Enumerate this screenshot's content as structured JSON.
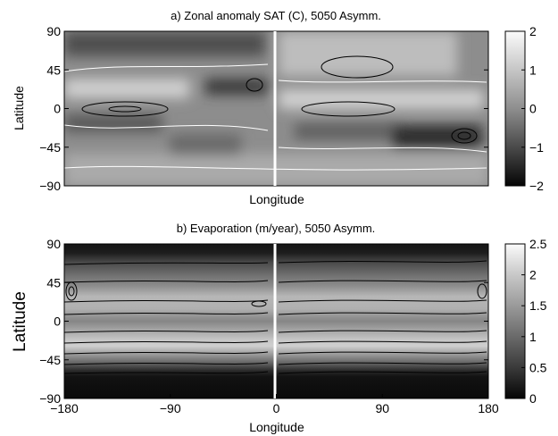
{
  "chart_data": [
    {
      "type": "heatmap",
      "title": "a) Zonal anomaly SAT (C), 5050 Asymm.",
      "xlabel": "Longitude",
      "ylabel": "Latitude",
      "xlim": [
        -180,
        180
      ],
      "ylim": [
        -90,
        90
      ],
      "x_ticks": [],
      "y_ticks": [
        -90,
        -45,
        0,
        45,
        90
      ],
      "colorbar": {
        "range": [
          -2,
          2
        ],
        "ticks": [
          -2,
          -1,
          0,
          1,
          2
        ]
      },
      "contour_colors": [
        "#000000",
        "#ffffff"
      ],
      "features": [
        {
          "lon": -150,
          "lat": 0,
          "value": 0.8
        },
        {
          "lon": 95,
          "lat": 0,
          "value": 0.8
        },
        {
          "lon": 95,
          "lat": 60,
          "value": 1.3
        },
        {
          "lon": -90,
          "lat": 72,
          "value": -0.9
        },
        {
          "lon": -20,
          "lat": 40,
          "value": -1.5
        },
        {
          "lon": 160,
          "lat": -35,
          "value": -1.8
        },
        {
          "lon": 130,
          "lat": -25,
          "value": -1.2
        }
      ]
    },
    {
      "type": "heatmap",
      "title": "b) Evaporation (m/year), 5050 Asymm.",
      "xlabel": "Longitude",
      "ylabel": "Latitude",
      "xlim": [
        -180,
        180
      ],
      "ylim": [
        -90,
        90
      ],
      "x_ticks": [
        -180,
        -90,
        0,
        90,
        180
      ],
      "y_ticks": [
        -90,
        -45,
        0,
        45,
        90
      ],
      "colorbar": {
        "range": [
          0,
          2.5
        ],
        "ticks": [
          0,
          0.5,
          1,
          1.5,
          2,
          2.5
        ]
      },
      "zonal_profile": [
        {
          "lat": 90,
          "value": 0.0
        },
        {
          "lat": 80,
          "value": 0.1
        },
        {
          "lat": 70,
          "value": 0.35
        },
        {
          "lat": 55,
          "value": 0.95
        },
        {
          "lat": 40,
          "value": 1.4
        },
        {
          "lat": 30,
          "value": 1.85
        },
        {
          "lat": 15,
          "value": 1.75
        },
        {
          "lat": 5,
          "value": 1.45
        },
        {
          "lat": 0,
          "value": 1.3
        },
        {
          "lat": -10,
          "value": 1.6
        },
        {
          "lat": -20,
          "value": 1.95
        },
        {
          "lat": -25,
          "value": 2.1
        },
        {
          "lat": -35,
          "value": 1.45
        },
        {
          "lat": -45,
          "value": 0.85
        },
        {
          "lat": -55,
          "value": 0.25
        },
        {
          "lat": -65,
          "value": 0.05
        },
        {
          "lat": -90,
          "value": 0.0
        }
      ]
    }
  ]
}
